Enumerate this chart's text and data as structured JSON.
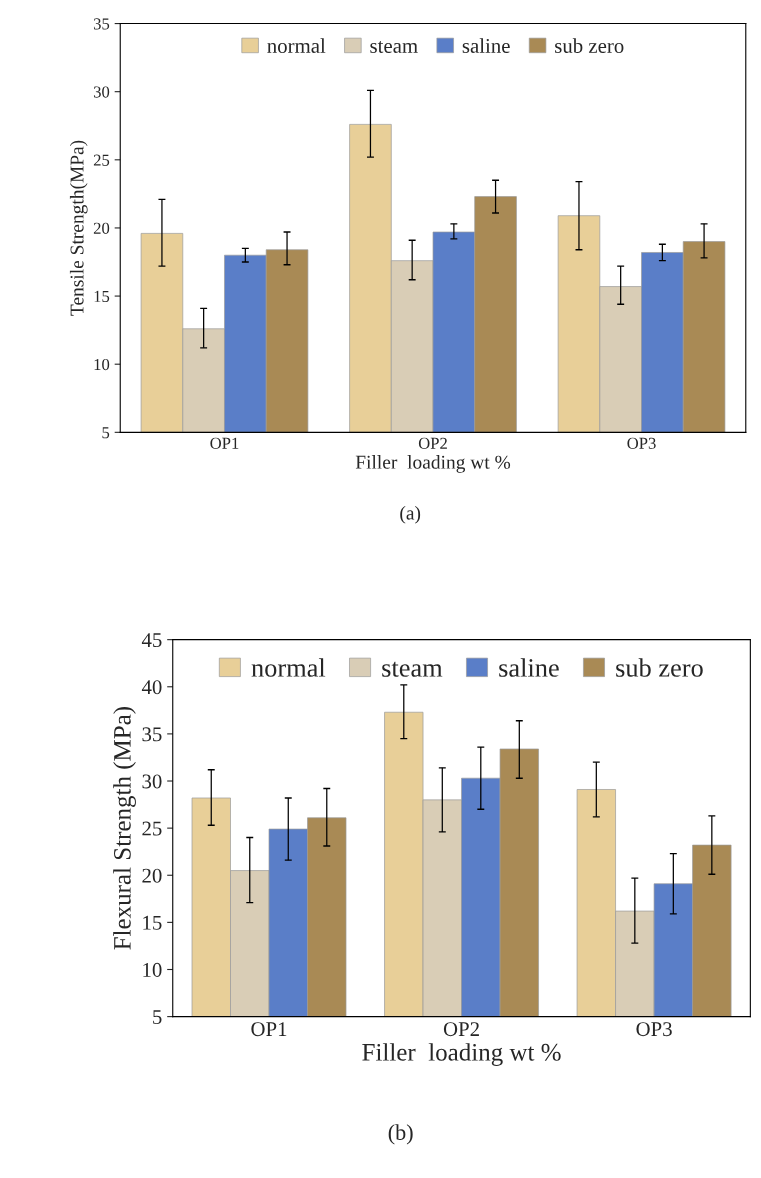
{
  "chart_data": [
    {
      "type": "bar",
      "ylabel": "Tensile Strength(MPa)",
      "xlabel": "Filler  loading wt %",
      "categories": [
        "OP1",
        "OP2",
        "OP3"
      ],
      "ylim": [
        5,
        35
      ],
      "yticks": [
        5,
        10,
        15,
        20,
        25,
        30,
        35
      ],
      "legend": "top",
      "grid": false,
      "annotations": [
        "(a)"
      ],
      "series": [
        {
          "name": "normal",
          "color": "#e8cf98",
          "values": [
            19.6,
            27.6,
            20.9
          ],
          "errors": [
            [
              17.2,
              22.1
            ],
            [
              25.2,
              30.1
            ],
            [
              18.4,
              23.4
            ]
          ]
        },
        {
          "name": "steam",
          "color": "#d9cdb6",
          "values": [
            12.6,
            17.6,
            15.7
          ],
          "errors": [
            [
              11.2,
              14.1
            ],
            [
              16.2,
              19.1
            ],
            [
              14.4,
              17.2
            ]
          ]
        },
        {
          "name": "saline",
          "color": "#5a7ec8",
          "values": [
            18.0,
            19.7,
            18.2
          ],
          "errors": [
            [
              17.5,
              18.5
            ],
            [
              19.2,
              20.3
            ],
            [
              17.6,
              18.8
            ]
          ]
        },
        {
          "name": "sub zero",
          "color": "#a98a55",
          "values": [
            18.4,
            22.3,
            19.0
          ],
          "errors": [
            [
              17.3,
              19.7
            ],
            [
              21.1,
              23.5
            ],
            [
              17.8,
              20.3
            ]
          ]
        }
      ]
    },
    {
      "type": "bar",
      "ylabel": "Flexural Strength (MPa)",
      "xlabel": "Filler  loading wt %",
      "categories": [
        "OP1",
        "OP2",
        "OP3"
      ],
      "ylim": [
        5,
        45
      ],
      "yticks": [
        5,
        10,
        15,
        20,
        25,
        30,
        35,
        40,
        45
      ],
      "legend": "top",
      "grid": false,
      "annotations": [
        "(b)"
      ],
      "series": [
        {
          "name": "normal",
          "color": "#e8cf98",
          "values": [
            28.2,
            37.3,
            29.1
          ],
          "errors": [
            [
              25.3,
              31.2
            ],
            [
              34.5,
              40.2
            ],
            [
              26.2,
              32.0
            ]
          ]
        },
        {
          "name": "steam",
          "color": "#d9cdb6",
          "values": [
            20.5,
            28.0,
            16.2
          ],
          "errors": [
            [
              17.1,
              24.0
            ],
            [
              24.6,
              31.4
            ],
            [
              12.8,
              19.7
            ]
          ]
        },
        {
          "name": "saline",
          "color": "#5a7ec8",
          "values": [
            24.9,
            30.3,
            19.1
          ],
          "errors": [
            [
              21.6,
              28.2
            ],
            [
              27.0,
              33.6
            ],
            [
              15.9,
              22.3
            ]
          ]
        },
        {
          "name": "sub zero",
          "color": "#a98a55",
          "values": [
            26.1,
            33.4,
            23.2
          ],
          "errors": [
            [
              23.1,
              29.2
            ],
            [
              30.3,
              36.4
            ],
            [
              20.1,
              26.3
            ]
          ]
        }
      ]
    }
  ]
}
